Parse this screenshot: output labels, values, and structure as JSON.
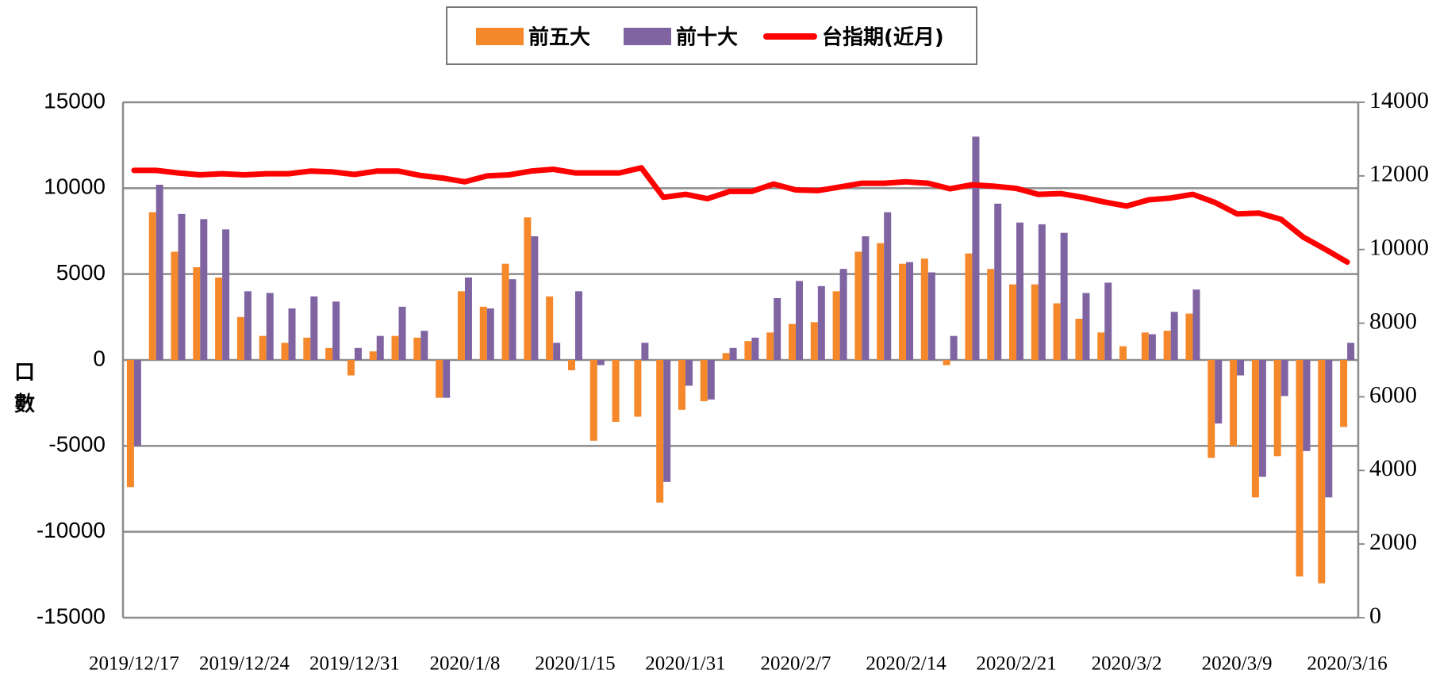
{
  "chart_data": {
    "type": "bar",
    "categories": [
      "2019/12/17",
      null,
      null,
      null,
      null,
      "2019/12/24",
      null,
      null,
      null,
      null,
      "2019/12/31",
      null,
      null,
      null,
      null,
      "2020/1/8",
      null,
      null,
      null,
      null,
      "2020/1/15",
      null,
      null,
      null,
      null,
      "2020/1/31",
      null,
      null,
      null,
      null,
      "2020/2/7",
      null,
      null,
      null,
      null,
      "2020/2/14",
      null,
      null,
      null,
      null,
      "2020/2/21",
      null,
      null,
      null,
      null,
      "2020/3/2",
      null,
      null,
      null,
      null,
      "2020/3/9",
      null,
      null,
      null,
      null,
      "2020/3/16"
    ],
    "series": [
      {
        "name": "前五大",
        "color": "#f5882a",
        "values": [
          -7400,
          8600,
          6300,
          5400,
          4800,
          2500,
          1400,
          1000,
          1300,
          700,
          -900,
          500,
          1400,
          1300,
          -2200,
          4000,
          3100,
          5600,
          8300,
          3700,
          -600,
          -4700,
          -3600,
          -3300,
          -8300,
          -2900,
          -2400,
          400,
          1100,
          1600,
          2100,
          2200,
          4000,
          6300,
          6800,
          5600,
          5900,
          -300,
          6200,
          5300,
          4400,
          4400,
          3300,
          2400,
          1600,
          800,
          1600,
          1700,
          2700,
          -5700,
          -5000,
          -8000,
          -5600,
          -12600,
          -13000,
          -3900
        ]
      },
      {
        "name": "前十大",
        "color": "#8064a2",
        "values": [
          -5000,
          10200,
          8500,
          8200,
          7600,
          4000,
          3900,
          3000,
          3700,
          3400,
          700,
          1400,
          3100,
          1700,
          -2200,
          4800,
          3000,
          4700,
          7200,
          1000,
          4000,
          -300,
          0,
          1000,
          -7100,
          -1500,
          -2300,
          700,
          1300,
          3600,
          4600,
          4300,
          5300,
          7200,
          8600,
          5700,
          5100,
          1400,
          13000,
          9100,
          8000,
          7900,
          7400,
          3900,
          4500,
          0,
          1500,
          2800,
          4100,
          -3700,
          -900,
          -6800,
          -2100,
          -5300,
          -8000,
          1000
        ]
      },
      {
        "name": "台指期(近月)",
        "color": "#ff0000",
        "type": "line",
        "axis": "y2",
        "values": [
          12150,
          12150,
          12080,
          12030,
          12060,
          12030,
          12060,
          12060,
          12130,
          12110,
          12040,
          12130,
          12130,
          12010,
          11940,
          11840,
          12000,
          12030,
          12130,
          12180,
          12080,
          12080,
          12080,
          12220,
          11420,
          11500,
          11380,
          11580,
          11580,
          11780,
          11620,
          11600,
          11700,
          11800,
          11800,
          11840,
          11800,
          11650,
          11760,
          11720,
          11660,
          11500,
          11520,
          11420,
          11290,
          11180,
          11350,
          11400,
          11500,
          11280,
          10970,
          10990,
          10820,
          10340,
          10010,
          9660
        ]
      }
    ],
    "ylabel": "口數",
    "ylim": [
      -15000,
      15000
    ],
    "yticks": [
      -15000,
      -10000,
      -5000,
      0,
      5000,
      10000,
      15000
    ],
    "y2lim": [
      0,
      14000
    ],
    "y2ticks": [
      0,
      2000,
      4000,
      6000,
      8000,
      10000,
      12000,
      14000
    ],
    "grid": true,
    "legend": "top"
  }
}
